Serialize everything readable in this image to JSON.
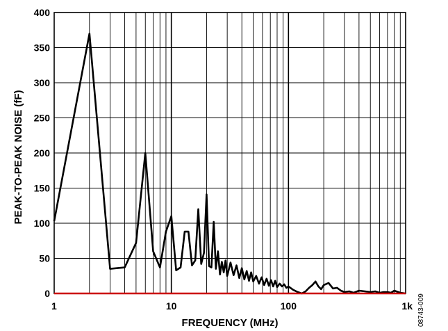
{
  "chart_data": {
    "type": "line",
    "xscale": "log",
    "xlim": [
      1,
      1000
    ],
    "ylim": [
      0,
      400
    ],
    "xlabel": "FREQUENCY (MHz)",
    "ylabel": "PEAK-TO-PEAK NOISE (fF)",
    "x_ticks": [
      1,
      10,
      100,
      1000
    ],
    "x_tick_labels": [
      "1",
      "10",
      "100",
      "1k"
    ],
    "y_ticks": [
      0,
      50,
      100,
      150,
      200,
      250,
      300,
      350,
      400
    ],
    "y_tick_labels": [
      "0",
      "50",
      "100",
      "150",
      "200",
      "250",
      "300",
      "350",
      "400"
    ],
    "grid": true,
    "figure_id": "08743-009",
    "colors": {
      "series": "#000000",
      "baseline": "#cc0000",
      "grid": "#000000"
    },
    "series": [
      {
        "x": [
          1,
          2,
          3,
          4,
          5,
          6,
          7,
          8,
          9,
          10,
          11,
          12,
          13,
          14,
          15,
          16,
          17,
          18,
          19,
          20,
          21,
          22,
          23,
          24,
          25,
          26,
          27,
          28,
          29,
          30,
          32,
          34,
          36,
          38,
          40,
          42,
          44,
          46,
          48,
          50,
          53,
          56,
          59,
          62,
          65,
          68,
          71,
          74,
          77,
          80,
          84,
          88,
          92,
          96,
          100,
          110,
          120,
          130,
          140,
          150,
          160,
          170,
          180,
          190,
          200,
          220,
          240,
          260,
          280,
          300,
          330,
          360,
          400,
          450,
          500,
          550,
          600,
          650,
          700,
          750,
          800,
          900,
          1000
        ],
        "y": [
          103,
          370,
          35,
          37,
          72,
          200,
          60,
          37,
          88,
          110,
          33,
          37,
          88,
          88,
          40,
          47,
          120,
          42,
          58,
          141,
          39,
          37,
          102,
          35,
          60,
          27,
          45,
          30,
          47,
          25,
          44,
          26,
          40,
          22,
          36,
          20,
          32,
          18,
          30,
          17,
          25,
          14,
          23,
          12,
          21,
          11,
          19,
          10,
          18,
          9,
          14,
          10,
          13,
          8,
          10,
          5,
          2,
          0,
          3,
          8,
          12,
          17,
          10,
          6,
          12,
          15,
          7,
          8,
          4,
          2,
          3,
          1,
          4,
          3,
          2,
          3,
          1,
          2,
          2,
          1,
          4,
          1,
          0
        ]
      },
      {
        "x": [
          1,
          1000
        ],
        "y": [
          0,
          0
        ]
      }
    ]
  }
}
